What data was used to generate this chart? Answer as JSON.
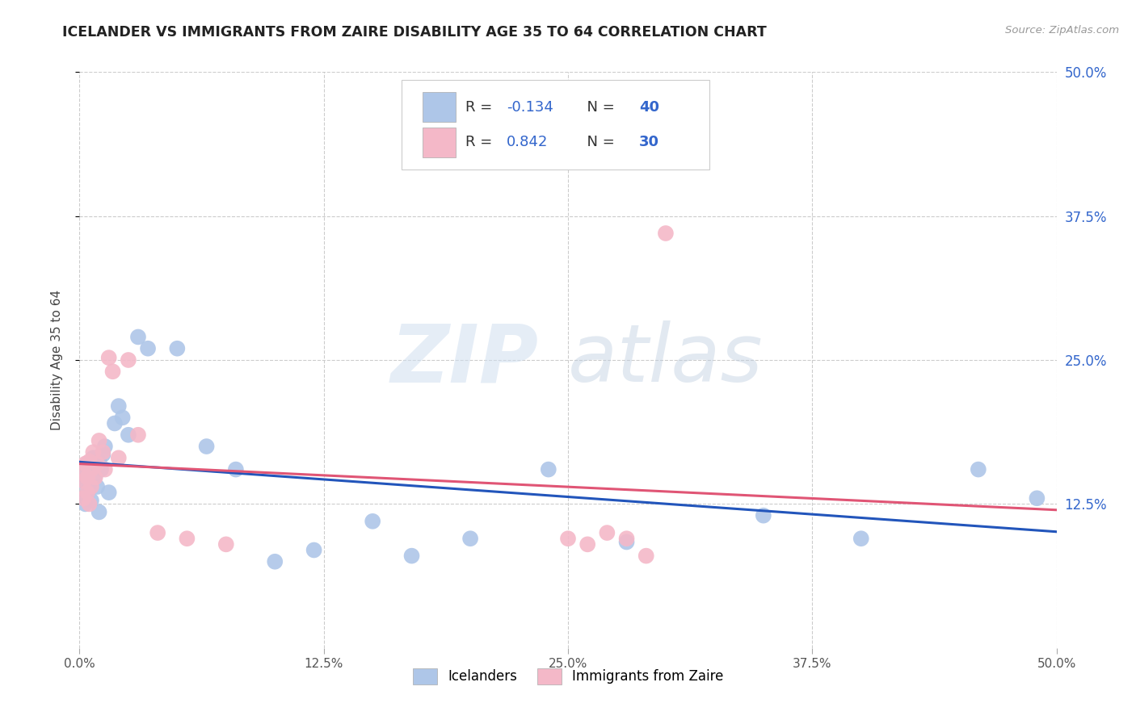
{
  "title": "ICELANDER VS IMMIGRANTS FROM ZAIRE DISABILITY AGE 35 TO 64 CORRELATION CHART",
  "source": "Source: ZipAtlas.com",
  "ylabel": "Disability Age 35 to 64",
  "xlim": [
    0.0,
    0.5
  ],
  "ylim": [
    0.0,
    0.5
  ],
  "xtick_vals": [
    0.0,
    0.125,
    0.25,
    0.375,
    0.5
  ],
  "xtick_labels": [
    "0.0%",
    "12.5%",
    "25.0%",
    "37.5%",
    "50.0%"
  ],
  "ytick_vals": [
    0.125,
    0.25,
    0.375,
    0.5
  ],
  "ytick_labels": [
    "12.5%",
    "25.0%",
    "37.5%",
    "50.0%"
  ],
  "icelander_R": "-0.134",
  "icelander_N": "40",
  "zaire_R": "0.842",
  "zaire_N": "30",
  "icelander_color": "#aec6e8",
  "zaire_color": "#f4b8c8",
  "icelander_line_color": "#2255bb",
  "zaire_line_color": "#e05575",
  "legend_label_icelander": "Icelanders",
  "legend_label_zaire": "Immigrants from Zaire",
  "watermark_zip": "ZIP",
  "watermark_atlas": "atlas",
  "background_color": "#ffffff",
  "grid_color": "#cccccc",
  "icelander_x": [
    0.001,
    0.002,
    0.002,
    0.003,
    0.003,
    0.004,
    0.004,
    0.005,
    0.005,
    0.006,
    0.006,
    0.007,
    0.008,
    0.009,
    0.01,
    0.01,
    0.011,
    0.012,
    0.013,
    0.015,
    0.018,
    0.02,
    0.022,
    0.025,
    0.03,
    0.035,
    0.05,
    0.065,
    0.08,
    0.1,
    0.12,
    0.15,
    0.17,
    0.2,
    0.24,
    0.28,
    0.35,
    0.4,
    0.46,
    0.49
  ],
  "icelander_y": [
    0.145,
    0.155,
    0.13,
    0.148,
    0.125,
    0.16,
    0.135,
    0.152,
    0.142,
    0.158,
    0.128,
    0.165,
    0.15,
    0.14,
    0.162,
    0.118,
    0.155,
    0.168,
    0.175,
    0.135,
    0.195,
    0.21,
    0.2,
    0.185,
    0.27,
    0.26,
    0.26,
    0.175,
    0.155,
    0.075,
    0.085,
    0.11,
    0.08,
    0.095,
    0.155,
    0.092,
    0.115,
    0.095,
    0.155,
    0.13
  ],
  "zaire_x": [
    0.001,
    0.002,
    0.002,
    0.003,
    0.004,
    0.004,
    0.005,
    0.005,
    0.006,
    0.006,
    0.007,
    0.008,
    0.009,
    0.01,
    0.012,
    0.013,
    0.015,
    0.017,
    0.02,
    0.025,
    0.03,
    0.04,
    0.055,
    0.075,
    0.25,
    0.26,
    0.27,
    0.28,
    0.29,
    0.3
  ],
  "zaire_y": [
    0.155,
    0.145,
    0.13,
    0.16,
    0.148,
    0.135,
    0.162,
    0.125,
    0.155,
    0.14,
    0.17,
    0.148,
    0.16,
    0.18,
    0.17,
    0.155,
    0.252,
    0.24,
    0.165,
    0.25,
    0.185,
    0.1,
    0.095,
    0.09,
    0.095,
    0.09,
    0.1,
    0.095,
    0.08,
    0.36
  ]
}
